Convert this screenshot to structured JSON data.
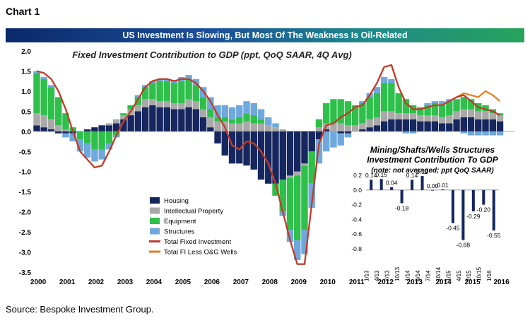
{
  "page": {
    "chart_label": "Chart 1",
    "banner": "US Investment Is Slowing, But Most Of The Weakness Is Oil-Related",
    "source": "Source: Bespoke Investment Group."
  },
  "colors": {
    "housing": "#16265e",
    "ip": "#a9a9a9",
    "equipment": "#2fbf4b",
    "structures": "#6fa8dc",
    "total": "#c0392b",
    "total_less": "#e67e22",
    "inset_bar": "#16265e"
  },
  "chart_data": [
    {
      "type": "bar",
      "stacked": true,
      "title": "Fixed Investment Contribution to GDP (ppt, QoQ SAAR, 4Q Avg)",
      "x_tick_labels": [
        "2000",
        "2001",
        "2002",
        "2003",
        "2004",
        "2005",
        "2006",
        "2007",
        "2008",
        "2009",
        "2010",
        "2011",
        "2012",
        "2013",
        "2014",
        "2015",
        "2016"
      ],
      "y_tick_labels": [
        "2.0",
        "1.5",
        "1.0",
        "0.5",
        "0.0",
        "-0.5",
        "-1.0",
        "-1.5",
        "-2.0",
        "-2.5",
        "-3.0",
        "-3.5"
      ],
      "ylim": [
        -3.5,
        2.0
      ],
      "x": [
        2000.0,
        2000.25,
        2000.5,
        2000.75,
        2001.0,
        2001.25,
        2001.5,
        2001.75,
        2002.0,
        2002.25,
        2002.5,
        2002.75,
        2003.0,
        2003.25,
        2003.5,
        2003.75,
        2004.0,
        2004.25,
        2004.5,
        2004.75,
        2005.0,
        2005.25,
        2005.5,
        2005.75,
        2006.0,
        2006.25,
        2006.5,
        2006.75,
        2007.0,
        2007.25,
        2007.5,
        2007.75,
        2008.0,
        2008.25,
        2008.5,
        2008.75,
        2009.0,
        2009.25,
        2009.5,
        2009.75,
        2010.0,
        2010.25,
        2010.5,
        2010.75,
        2011.0,
        2011.25,
        2011.5,
        2011.75,
        2012.0,
        2012.25,
        2012.5,
        2012.75,
        2013.0,
        2013.25,
        2013.5,
        2013.75,
        2014.0,
        2014.25,
        2014.5,
        2014.75,
        2015.0,
        2015.25,
        2015.5,
        2015.75,
        2016.0
      ],
      "series": [
        {
          "name": "Housing",
          "values": [
            0.15,
            0.1,
            0.05,
            -0.05,
            -0.05,
            -0.05,
            0.0,
            0.05,
            0.1,
            0.15,
            0.15,
            0.2,
            0.3,
            0.4,
            0.5,
            0.6,
            0.65,
            0.6,
            0.6,
            0.55,
            0.55,
            0.6,
            0.55,
            0.35,
            0.1,
            -0.3,
            -0.6,
            -0.8,
            -0.8,
            -0.85,
            -0.95,
            -1.2,
            -1.3,
            -1.3,
            -1.2,
            -1.1,
            -1.0,
            -0.8,
            -0.5,
            -0.2,
            0.05,
            0.0,
            -0.05,
            -0.05,
            0.0,
            0.05,
            0.1,
            0.15,
            0.25,
            0.3,
            0.3,
            0.3,
            0.3,
            0.25,
            0.25,
            0.25,
            0.2,
            0.2,
            0.3,
            0.35,
            0.35,
            0.3,
            0.3,
            0.3,
            0.25
          ]
        },
        {
          "name": "Intellectual Property",
          "values": [
            0.3,
            0.3,
            0.25,
            0.15,
            0.05,
            0.0,
            0.0,
            0.0,
            0.0,
            0.0,
            0.05,
            0.1,
            0.1,
            0.15,
            0.15,
            0.2,
            0.15,
            0.15,
            0.15,
            0.15,
            0.15,
            0.2,
            0.2,
            0.2,
            0.25,
            0.25,
            0.25,
            0.2,
            0.2,
            0.25,
            0.2,
            0.2,
            0.15,
            0.1,
            0.05,
            -0.05,
            -0.1,
            -0.05,
            0.0,
            0.1,
            0.15,
            0.2,
            0.2,
            0.15,
            0.15,
            0.15,
            0.2,
            0.2,
            0.25,
            0.2,
            0.15,
            0.15,
            0.15,
            0.15,
            0.15,
            0.15,
            0.15,
            0.2,
            0.2,
            0.2,
            0.2,
            0.2,
            0.2,
            0.15,
            0.15
          ]
        },
        {
          "name": "Equipment",
          "values": [
            1.0,
            0.9,
            0.8,
            0.7,
            0.4,
            0.1,
            -0.2,
            -0.3,
            -0.45,
            -0.45,
            -0.3,
            -0.1,
            0.05,
            0.1,
            0.2,
            0.3,
            0.4,
            0.5,
            0.5,
            0.5,
            0.55,
            0.5,
            0.4,
            0.3,
            0.2,
            0.1,
            0.1,
            0.1,
            0.15,
            0.2,
            0.2,
            0.1,
            0.0,
            -0.3,
            -0.8,
            -1.3,
            -1.6,
            -1.6,
            -0.8,
            0.2,
            0.5,
            0.6,
            0.6,
            0.6,
            0.5,
            0.5,
            0.55,
            0.6,
            0.7,
            0.7,
            0.5,
            0.35,
            0.2,
            0.2,
            0.25,
            0.3,
            0.3,
            0.35,
            0.3,
            0.3,
            0.25,
            0.2,
            0.15,
            0.1,
            0.05
          ]
        },
        {
          "name": "Structures",
          "values": [
            0.05,
            0.05,
            0.05,
            0.0,
            -0.1,
            -0.2,
            -0.3,
            -0.35,
            -0.3,
            -0.25,
            -0.15,
            -0.05,
            0.0,
            0.0,
            0.05,
            0.05,
            0.05,
            0.05,
            0.05,
            0.05,
            0.1,
            0.1,
            0.15,
            0.25,
            0.3,
            0.3,
            0.3,
            0.3,
            0.3,
            0.3,
            0.3,
            0.25,
            0.2,
            0.1,
            -0.1,
            -0.3,
            -0.5,
            -0.6,
            -0.6,
            -0.6,
            -0.5,
            -0.4,
            -0.3,
            -0.1,
            0.0,
            0.05,
            0.1,
            0.15,
            0.15,
            0.1,
            0.0,
            -0.05,
            -0.05,
            0.0,
            0.05,
            0.05,
            0.1,
            0.05,
            0.0,
            -0.05,
            -0.1,
            -0.1,
            -0.1,
            -0.1,
            -0.1
          ]
        }
      ],
      "lines": [
        {
          "name": "Total Fixed Investment",
          "values": [
            1.5,
            1.45,
            1.3,
            1.0,
            0.55,
            0.0,
            -0.5,
            -0.7,
            -0.9,
            -0.85,
            -0.5,
            -0.1,
            0.25,
            0.5,
            0.8,
            1.1,
            1.25,
            1.3,
            1.3,
            1.25,
            1.3,
            1.3,
            1.2,
            1.0,
            0.75,
            0.4,
            0.1,
            -0.35,
            -0.45,
            -0.25,
            -0.3,
            -0.5,
            -0.8,
            -1.3,
            -2.0,
            -2.7,
            -3.3,
            -3.3,
            -1.8,
            -0.3,
            0.15,
            0.2,
            0.35,
            0.45,
            0.6,
            0.65,
            0.9,
            1.2,
            1.6,
            1.65,
            1.1,
            0.7,
            0.55,
            0.55,
            0.6,
            0.65,
            0.65,
            0.75,
            0.85,
            0.9,
            0.75,
            0.6,
            0.55,
            0.5,
            0.4
          ]
        },
        {
          "name": "Total FI Less O&G Wells",
          "values": [
            1.5,
            1.45,
            1.3,
            1.0,
            0.55,
            0.0,
            -0.5,
            -0.7,
            -0.9,
            -0.85,
            -0.5,
            -0.1,
            0.25,
            0.5,
            0.8,
            1.1,
            1.25,
            1.3,
            1.3,
            1.25,
            1.3,
            1.3,
            1.2,
            1.0,
            0.75,
            0.4,
            0.1,
            -0.35,
            -0.45,
            -0.25,
            -0.3,
            -0.5,
            -0.8,
            -1.3,
            -2.0,
            -2.7,
            -3.3,
            -3.3,
            -1.8,
            -0.3,
            0.15,
            0.2,
            0.35,
            0.45,
            0.6,
            0.65,
            0.9,
            1.2,
            1.6,
            1.65,
            1.1,
            0.7,
            0.55,
            0.55,
            0.6,
            0.65,
            0.65,
            0.75,
            0.85,
            0.95,
            0.9,
            0.85,
            1.0,
            0.9,
            0.75
          ]
        }
      ],
      "legend_position": "bottom-left"
    },
    {
      "type": "bar",
      "title_lines": [
        "Mining/Shafts/Wells Structures",
        "Investment Contribution To GDP",
        "(note: not averaged; ppt QoQ SAAR)"
      ],
      "categories": [
        "1/13",
        "4/13",
        "7/13",
        "10/13",
        "1/14",
        "4/14",
        "7/14",
        "10/14",
        "1/15",
        "4/15",
        "7/15",
        "10/15",
        "1/16"
      ],
      "category_ticks": [
        "1/13",
        "",
        "4/13",
        "",
        "7/13",
        "",
        "10/13",
        "",
        "1/14",
        "",
        "4/14",
        "",
        "7/14",
        "",
        "10/14",
        "",
        "1/15",
        "",
        "4/15",
        "",
        "7/15",
        "",
        "10/15",
        "",
        "1/16",
        ""
      ],
      "values": [
        0.14,
        0.15,
        0.04,
        -0.18,
        0.14,
        0.19,
        0.0,
        0.01,
        -0.45,
        -0.68,
        -0.29,
        -0.2,
        -0.55
      ],
      "value_labels": [
        "0.14",
        "0.15",
        "0.04",
        "-0.18",
        "0.14",
        "0.19",
        "0.00",
        "0.01",
        "-0.45",
        "-0.68",
        "-0.29",
        "-0.20",
        "-0.55"
      ],
      "y_tick_labels": [
        "0.2",
        "0.0",
        "-0.2",
        "-0.4",
        "-0.6",
        "-0.8"
      ],
      "ylim": [
        -0.8,
        0.2
      ]
    }
  ]
}
